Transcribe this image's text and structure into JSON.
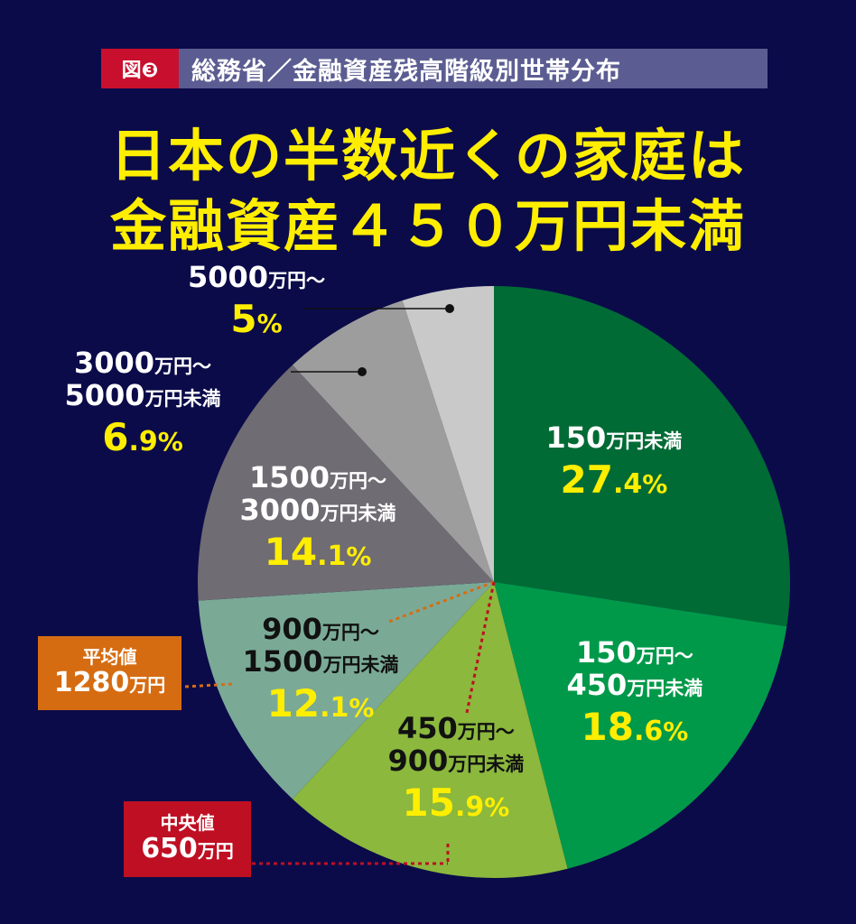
{
  "header": {
    "badge": "図❸",
    "subtitle": "総務省／金融資産残高階級別世帯分布"
  },
  "headline": {
    "line1": "日本の半数近くの家庭は",
    "line2": "金融資産４５０万円未満"
  },
  "stats": {
    "mean": {
      "label": "平均値",
      "value": "1280",
      "unit": "万円"
    },
    "median": {
      "label": "中央値",
      "value": "650",
      "unit": "万円"
    }
  },
  "chart_data": {
    "type": "pie",
    "title": "総務省／金融資産残高階級別世帯分布",
    "start": "top",
    "direction": "clockwise",
    "slices": [
      {
        "range": "150万円未満",
        "value": 27.4,
        "color": "#006b35",
        "label_color": "#ffffff"
      },
      {
        "range": "150万円～450万円未満",
        "value": 18.6,
        "color": "#00994a",
        "label_color": "#ffffff"
      },
      {
        "range": "450万円～900万円未満",
        "value": 15.9,
        "color": "#8bb83d",
        "label_color": "#111111"
      },
      {
        "range": "900万円～1500万円未満",
        "value": 12.1,
        "color": "#7aaa96",
        "label_color": "#111111"
      },
      {
        "range": "1500万円～3000万円未満",
        "value": 14.1,
        "color": "#6f6c73",
        "label_color": "#ffffff"
      },
      {
        "range": "3000万円～5000万円未満",
        "value": 6.9,
        "color": "#9d9d9d",
        "label_color": "#ffffff"
      },
      {
        "range": "5000万円～",
        "value": 5,
        "color": "#c9c9c9",
        "label_color": "#ffffff"
      }
    ],
    "percent_color": "#ffee00",
    "marker_colors": {
      "mean": "#d66c12",
      "median": "#bf0f23"
    }
  }
}
